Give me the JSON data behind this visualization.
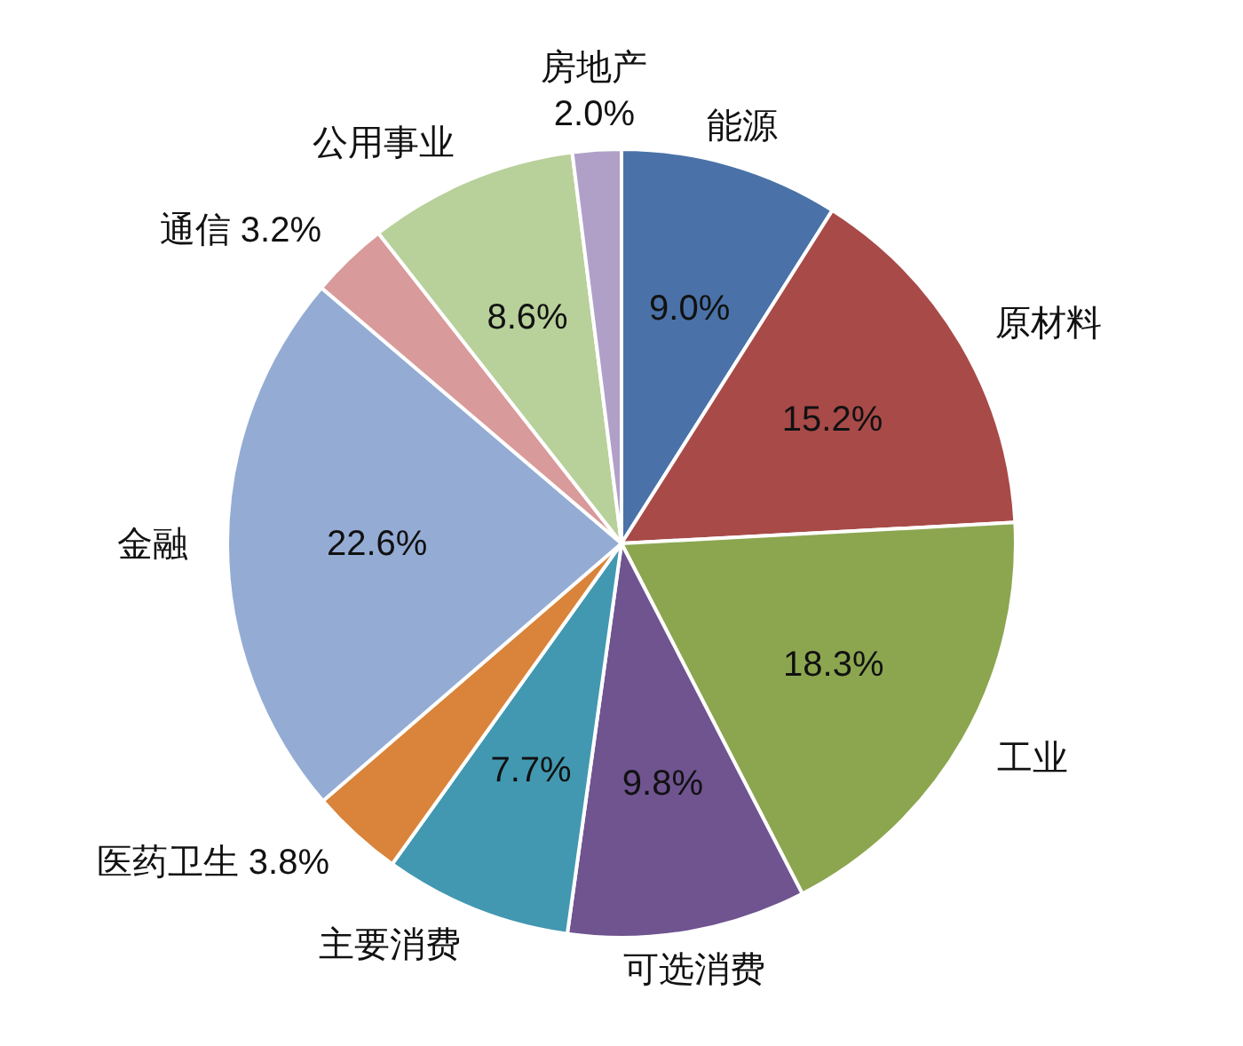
{
  "chart_data": {
    "type": "pie",
    "categories": [
      "能源",
      "原材料",
      "工业",
      "可选消费",
      "主要消费",
      "医药卫生",
      "金融",
      "通信",
      "公用事业",
      "房地产"
    ],
    "values": [
      9.0,
      15.2,
      18.3,
      9.8,
      7.7,
      3.8,
      22.6,
      3.2,
      8.6,
      2.0
    ],
    "value_labels": [
      "9.0%",
      "15.2%",
      "18.3%",
      "9.8%",
      "7.7%",
      "3.8%",
      "22.6%",
      "3.2%",
      "8.6%",
      "2.0%"
    ],
    "colors": [
      "#4a72a8",
      "#a84a48",
      "#8ca650",
      "#6f5490",
      "#4298b0",
      "#d9843a",
      "#94acd4",
      "#d89a9a",
      "#b8d09a",
      "#b0a0c8"
    ]
  }
}
